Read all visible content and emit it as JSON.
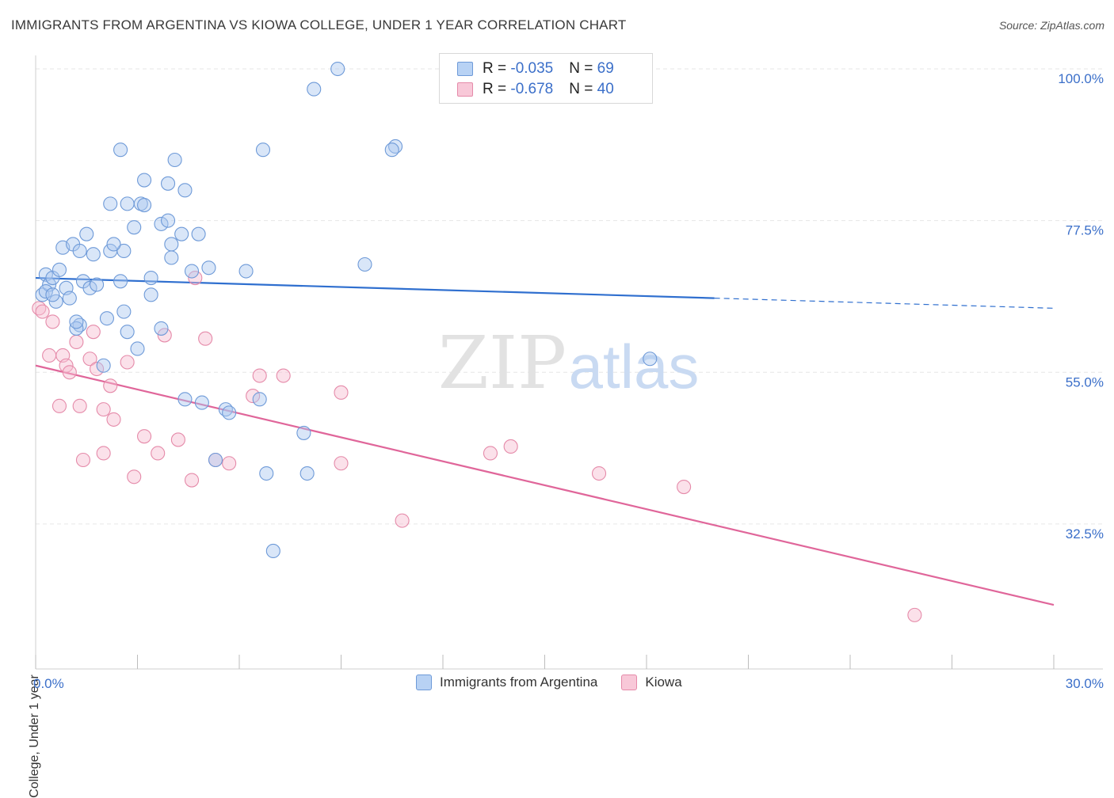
{
  "title": "IMMIGRANTS FROM ARGENTINA VS KIOWA COLLEGE, UNDER 1 YEAR CORRELATION CHART",
  "source": "Source: ZipAtlas.com",
  "watermark": {
    "zip": "ZIP",
    "atlas": "atlas"
  },
  "legend_top": {
    "r_label": "R = ",
    "n_label": "N = ",
    "rows": [
      {
        "r": "-0.035",
        "n": "69"
      },
      {
        "r": "-0.678",
        "n": "40"
      }
    ]
  },
  "legend_bottom": [
    "Immigrants from Argentina",
    "Kiowa"
  ],
  "colors": {
    "blue_fill": "#aac8f0",
    "blue_stroke": "#6e9ad8",
    "blue_line": "#2f6fcf",
    "pink_fill": "#f6bdd0",
    "pink_stroke": "#e58aa9",
    "pink_line": "#e0669a",
    "tick_text": "#3b6fc9",
    "grid": "#e6e6e6"
  },
  "chart_data": {
    "type": "scatter",
    "title": "IMMIGRANTS FROM ARGENTINA VS KIOWA COLLEGE, UNDER 1 YEAR CORRELATION CHART",
    "xlabel": "",
    "ylabel": "College, Under 1 year",
    "xlim": [
      0,
      30
    ],
    "ylim": [
      11,
      102
    ],
    "x_tick_labels": [
      "0.0%",
      "30.0%"
    ],
    "y_ticks": [
      32.5,
      55.0,
      77.5,
      100.0
    ],
    "y_tick_labels": [
      "32.5%",
      "55.0%",
      "77.5%",
      "100.0%"
    ],
    "grid": true,
    "legend_position": "top-center",
    "series": [
      {
        "name": "Immigrants from Argentina",
        "R": -0.035,
        "N": 69,
        "trend": {
          "x0": 0.0,
          "y0": 69.0,
          "x1": 20.0,
          "y1": 66.0,
          "dash_to_x": 30.0,
          "dash_to_y": 64.5
        },
        "points": [
          [
            0.2,
            66.5
          ],
          [
            0.3,
            69.5
          ],
          [
            0.4,
            68.0
          ],
          [
            0.5,
            69.0
          ],
          [
            0.6,
            65.5
          ],
          [
            0.7,
            70.2
          ],
          [
            0.9,
            67.5
          ],
          [
            1.0,
            66.0
          ],
          [
            0.8,
            73.5
          ],
          [
            1.1,
            74.0
          ],
          [
            1.3,
            73.0
          ],
          [
            1.5,
            75.5
          ],
          [
            1.4,
            68.5
          ],
          [
            1.6,
            67.5
          ],
          [
            1.8,
            68.0
          ],
          [
            1.7,
            72.5
          ],
          [
            2.2,
            73.0
          ],
          [
            2.6,
            73.0
          ],
          [
            2.3,
            74.0
          ],
          [
            2.5,
            68.5
          ],
          [
            2.2,
            80.0
          ],
          [
            2.5,
            88.0
          ],
          [
            3.1,
            80.0
          ],
          [
            3.2,
            79.8
          ],
          [
            3.2,
            83.5
          ],
          [
            3.9,
            83.0
          ],
          [
            4.1,
            86.5
          ],
          [
            4.4,
            82.0
          ],
          [
            3.7,
            77.0
          ],
          [
            3.9,
            77.5
          ],
          [
            2.9,
            76.5
          ],
          [
            4.0,
            74.0
          ],
          [
            4.3,
            75.5
          ],
          [
            4.0,
            72.0
          ],
          [
            4.6,
            70.0
          ],
          [
            5.1,
            70.5
          ],
          [
            3.4,
            69.0
          ],
          [
            3.4,
            66.5
          ],
          [
            2.6,
            64.0
          ],
          [
            2.1,
            63.0
          ],
          [
            1.3,
            62.0
          ],
          [
            1.2,
            61.5
          ],
          [
            2.7,
            61.0
          ],
          [
            3.0,
            58.5
          ],
          [
            3.7,
            61.5
          ],
          [
            4.4,
            51.0
          ],
          [
            4.9,
            50.5
          ],
          [
            5.6,
            49.5
          ],
          [
            5.7,
            49.0
          ],
          [
            6.2,
            70.0
          ],
          [
            6.6,
            51.0
          ],
          [
            6.8,
            40.0
          ],
          [
            7.0,
            28.5
          ],
          [
            6.7,
            88.0
          ],
          [
            8.2,
            97.0
          ],
          [
            8.9,
            100.0
          ],
          [
            9.7,
            71.0
          ],
          [
            10.6,
            88.5
          ],
          [
            10.5,
            88.0
          ],
          [
            7.9,
            46.0
          ],
          [
            8.0,
            40.0
          ],
          [
            5.3,
            42.0
          ],
          [
            18.1,
            57.0
          ],
          [
            2.0,
            56.0
          ],
          [
            0.3,
            67.0
          ],
          [
            0.5,
            66.5
          ],
          [
            2.7,
            80.0
          ],
          [
            4.8,
            75.5
          ],
          [
            1.2,
            62.5
          ]
        ]
      },
      {
        "name": "Kiowa",
        "R": -0.678,
        "N": 40,
        "trend": {
          "x0": 0.0,
          "y0": 56.0,
          "x1": 30.0,
          "y1": 20.5
        },
        "points": [
          [
            0.1,
            64.5
          ],
          [
            0.2,
            64.0
          ],
          [
            0.5,
            62.5
          ],
          [
            0.4,
            57.5
          ],
          [
            0.8,
            57.5
          ],
          [
            0.9,
            56.0
          ],
          [
            1.0,
            55.0
          ],
          [
            1.2,
            59.5
          ],
          [
            1.6,
            57.0
          ],
          [
            1.7,
            61.0
          ],
          [
            1.8,
            55.5
          ],
          [
            0.7,
            50.0
          ],
          [
            1.3,
            50.0
          ],
          [
            2.0,
            49.5
          ],
          [
            2.2,
            53.0
          ],
          [
            2.3,
            48.0
          ],
          [
            2.7,
            56.5
          ],
          [
            1.4,
            42.0
          ],
          [
            2.0,
            43.0
          ],
          [
            2.9,
            39.5
          ],
          [
            3.2,
            45.5
          ],
          [
            3.6,
            43.0
          ],
          [
            4.2,
            45.0
          ],
          [
            3.8,
            60.5
          ],
          [
            4.6,
            39.0
          ],
          [
            4.7,
            69.0
          ],
          [
            5.0,
            60.0
          ],
          [
            5.3,
            42.0
          ],
          [
            5.7,
            41.5
          ],
          [
            6.4,
            51.5
          ],
          [
            6.6,
            54.5
          ],
          [
            7.3,
            54.5
          ],
          [
            9.0,
            52.0
          ],
          [
            9.0,
            41.5
          ],
          [
            10.8,
            33.0
          ],
          [
            13.4,
            43.0
          ],
          [
            14.0,
            44.0
          ],
          [
            16.6,
            40.0
          ],
          [
            19.1,
            38.0
          ],
          [
            25.9,
            19.0
          ]
        ]
      }
    ]
  }
}
